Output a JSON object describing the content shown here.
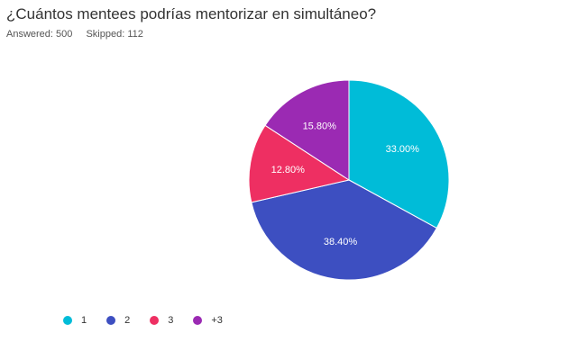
{
  "survey": {
    "question": "¿Cuántos mentees podrías mentorizar en simultáneo?",
    "answered_label": "Answered: 500",
    "skipped_label": "Skipped: 112"
  },
  "chart_data": {
    "type": "pie",
    "title": "¿Cuántos mentees podrías mentorizar en simultáneo?",
    "categories": [
      "1",
      "2",
      "3",
      "+3"
    ],
    "values": [
      33.0,
      38.4,
      12.8,
      15.8
    ],
    "value_labels": [
      "33.00%",
      "38.40%",
      "12.80%",
      "15.80%"
    ],
    "colors": [
      "#00bcd8",
      "#3d4fc1",
      "#ee2f62",
      "#9b2ab3"
    ],
    "start_angle_deg": 0,
    "direction": "clockwise",
    "legend_position": "bottom-left"
  }
}
